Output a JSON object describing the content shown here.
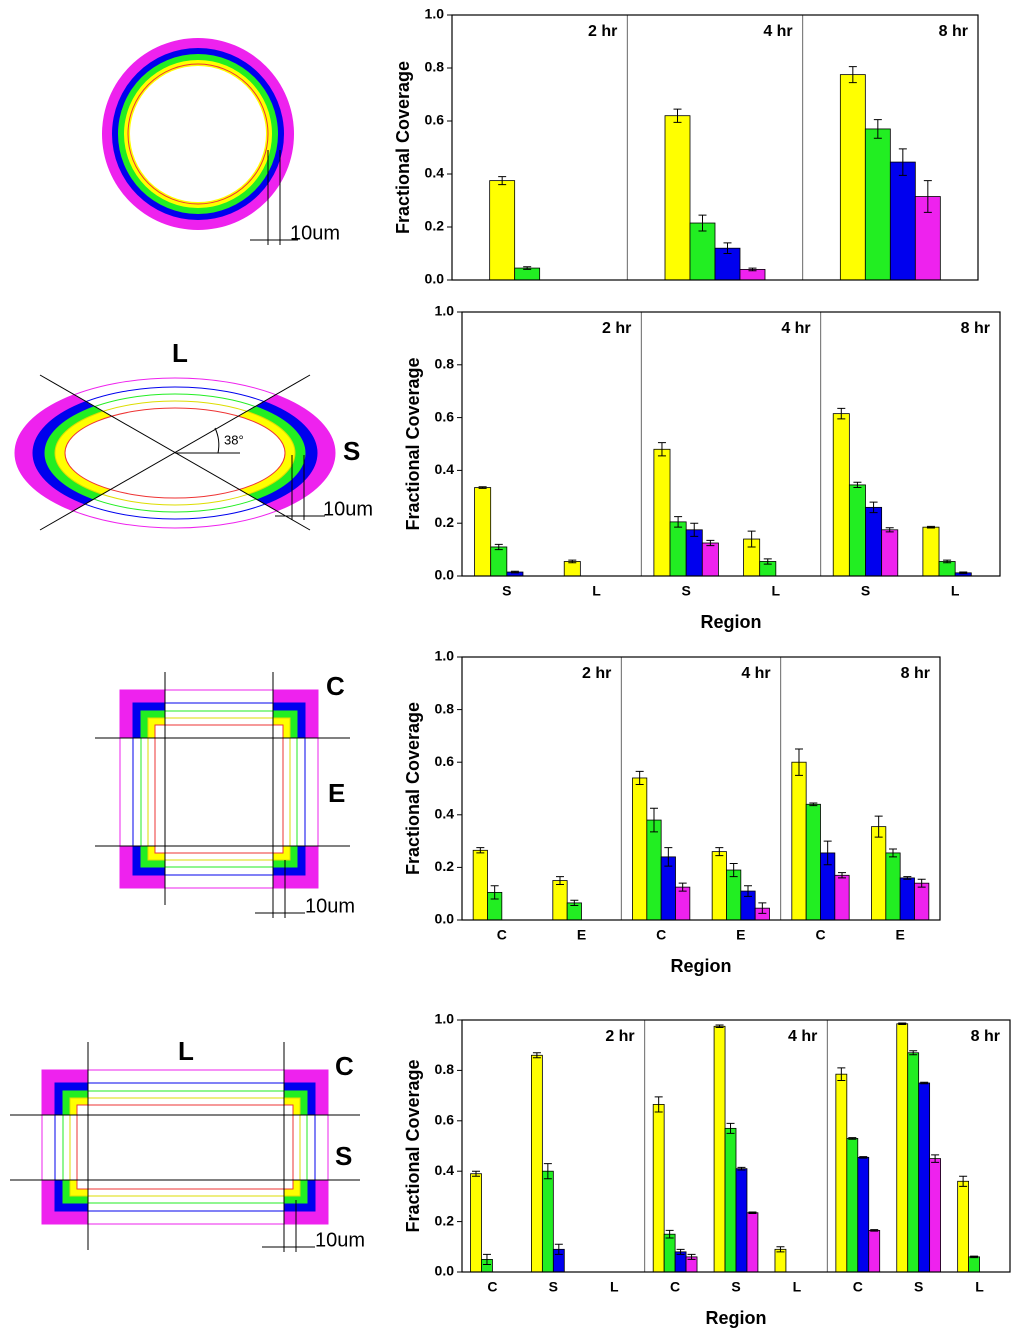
{
  "diagrams": [
    {
      "texts": [
        "10um"
      ]
    },
    {
      "texts": [
        "L",
        "S",
        "38°",
        "10um"
      ]
    },
    {
      "texts": [
        "C",
        "E",
        "10um"
      ]
    },
    {
      "texts": [
        "L",
        "C",
        "S",
        "10um"
      ]
    }
  ],
  "chart_data": [
    {
      "type": "bar",
      "ylabel": "Fractional Coverage",
      "ylim": [
        0,
        1
      ],
      "yticks": [
        {
          "value": 0,
          "label": "0.0"
        },
        {
          "value": 0.2,
          "label": "0.2"
        },
        {
          "value": 0.4,
          "label": "0.4"
        },
        {
          "value": 0.6,
          "label": "0.6"
        },
        {
          "value": 0.8,
          "label": "0.8"
        },
        {
          "value": 1,
          "label": "1.0"
        }
      ],
      "colors": [
        "#ffff00",
        "#22ee22",
        "#0000ee",
        "#ee22ee"
      ],
      "panels": [
        {
          "label": "2 hr",
          "categories": [
            null
          ],
          "series": [
            {
              "values": [
                0.375
              ],
              "errors": [
                0.015
              ]
            },
            {
              "values": [
                0.045
              ],
              "errors": [
                0.005
              ]
            },
            {
              "values": [
                null
              ],
              "errors": [
                null
              ]
            },
            {
              "values": [
                null
              ],
              "errors": [
                null
              ]
            }
          ]
        },
        {
          "label": "4 hr",
          "categories": [
            null
          ],
          "series": [
            {
              "values": [
                0.62
              ],
              "errors": [
                0.025
              ]
            },
            {
              "values": [
                0.215
              ],
              "errors": [
                0.03
              ]
            },
            {
              "values": [
                0.12
              ],
              "errors": [
                0.02
              ]
            },
            {
              "values": [
                0.04
              ],
              "errors": [
                0.005
              ]
            }
          ]
        },
        {
          "label": "8 hr",
          "categories": [
            null
          ],
          "series": [
            {
              "values": [
                0.775
              ],
              "errors": [
                0.03
              ]
            },
            {
              "values": [
                0.57
              ],
              "errors": [
                0.035
              ]
            },
            {
              "values": [
                0.445
              ],
              "errors": [
                0.05
              ]
            },
            {
              "values": [
                0.315
              ],
              "errors": [
                0.06
              ]
            }
          ]
        }
      ]
    },
    {
      "type": "bar",
      "ylabel": "Fractional Coverage",
      "xlabel": "Region",
      "ylim": [
        0,
        1
      ],
      "yticks": [
        {
          "value": 0,
          "label": "0.0"
        },
        {
          "value": 0.2,
          "label": "0.2"
        },
        {
          "value": 0.4,
          "label": "0.4"
        },
        {
          "value": 0.6,
          "label": "0.6"
        },
        {
          "value": 0.8,
          "label": "0.8"
        },
        {
          "value": 1,
          "label": "1.0"
        }
      ],
      "colors": [
        "#ffff00",
        "#22ee22",
        "#0000ee",
        "#ee22ee"
      ],
      "panels": [
        {
          "label": "2 hr",
          "categories": [
            "S",
            "L"
          ],
          "series": [
            {
              "values": [
                0.335,
                0.055
              ],
              "errors": [
                0.003,
                0.005
              ]
            },
            {
              "values": [
                0.11,
                null
              ],
              "errors": [
                0.01,
                null
              ]
            },
            {
              "values": [
                0.015,
                null
              ],
              "errors": [
                0.003,
                null
              ]
            },
            {
              "values": [
                null,
                null
              ],
              "errors": [
                null,
                null
              ]
            }
          ]
        },
        {
          "label": "4 hr",
          "categories": [
            "S",
            "L"
          ],
          "series": [
            {
              "values": [
                0.48,
                0.14
              ],
              "errors": [
                0.025,
                0.03
              ]
            },
            {
              "values": [
                0.205,
                0.055
              ],
              "errors": [
                0.02,
                0.01
              ]
            },
            {
              "values": [
                0.175,
                null
              ],
              "errors": [
                0.025,
                null
              ]
            },
            {
              "values": [
                0.125,
                null
              ],
              "errors": [
                0.01,
                null
              ]
            }
          ]
        },
        {
          "label": "8 hr",
          "categories": [
            "S",
            "L"
          ],
          "series": [
            {
              "values": [
                0.615,
                0.185
              ],
              "errors": [
                0.02,
                0.003
              ]
            },
            {
              "values": [
                0.345,
                0.055
              ],
              "errors": [
                0.01,
                0.005
              ]
            },
            {
              "values": [
                0.26,
                0.012
              ],
              "errors": [
                0.02,
                0.003
              ]
            },
            {
              "values": [
                0.175,
                null
              ],
              "errors": [
                0.008,
                null
              ]
            }
          ]
        }
      ]
    },
    {
      "type": "bar",
      "ylabel": "Fractional Coverage",
      "xlabel": "Region",
      "ylim": [
        0,
        1
      ],
      "yticks": [
        {
          "value": 0,
          "label": "0.0"
        },
        {
          "value": 0.2,
          "label": "0.2"
        },
        {
          "value": 0.4,
          "label": "0.4"
        },
        {
          "value": 0.6,
          "label": "0.6"
        },
        {
          "value": 0.8,
          "label": "0.8"
        },
        {
          "value": 1,
          "label": "1.0"
        }
      ],
      "colors": [
        "#ffff00",
        "#22ee22",
        "#0000ee",
        "#ee22ee"
      ],
      "panels": [
        {
          "label": "2 hr",
          "categories": [
            "C",
            "E"
          ],
          "series": [
            {
              "values": [
                0.265,
                0.15
              ],
              "errors": [
                0.01,
                0.015
              ]
            },
            {
              "values": [
                0.105,
                0.065
              ],
              "errors": [
                0.025,
                0.01
              ]
            },
            {
              "values": [
                null,
                null
              ],
              "errors": [
                null,
                null
              ]
            },
            {
              "values": [
                null,
                null
              ],
              "errors": [
                null,
                null
              ]
            }
          ]
        },
        {
          "label": "4 hr",
          "categories": [
            "C",
            "E"
          ],
          "series": [
            {
              "values": [
                0.54,
                0.26
              ],
              "errors": [
                0.025,
                0.015
              ]
            },
            {
              "values": [
                0.38,
                0.19
              ],
              "errors": [
                0.045,
                0.025
              ]
            },
            {
              "values": [
                0.24,
                0.11
              ],
              "errors": [
                0.035,
                0.02
              ]
            },
            {
              "values": [
                0.125,
                0.045
              ],
              "errors": [
                0.015,
                0.02
              ]
            }
          ]
        },
        {
          "label": "8 hr",
          "categories": [
            "C",
            "E"
          ],
          "series": [
            {
              "values": [
                0.6,
                0.355
              ],
              "errors": [
                0.05,
                0.04
              ]
            },
            {
              "values": [
                0.44,
                0.255
              ],
              "errors": [
                0.005,
                0.015
              ]
            },
            {
              "values": [
                0.255,
                0.16
              ],
              "errors": [
                0.045,
                0.005
              ]
            },
            {
              "values": [
                0.17,
                0.14
              ],
              "errors": [
                0.01,
                0.015
              ]
            }
          ]
        }
      ]
    },
    {
      "type": "bar",
      "ylabel": "Fractional Coverage",
      "xlabel": "Region",
      "ylim": [
        0,
        1
      ],
      "yticks": [
        {
          "value": 0,
          "label": "0.0"
        },
        {
          "value": 0.2,
          "label": "0.2"
        },
        {
          "value": 0.4,
          "label": "0.4"
        },
        {
          "value": 0.6,
          "label": "0.6"
        },
        {
          "value": 0.8,
          "label": "0.8"
        },
        {
          "value": 1,
          "label": "1.0"
        }
      ],
      "colors": [
        "#ffff00",
        "#22ee22",
        "#0000ee",
        "#ee22ee"
      ],
      "panels": [
        {
          "label": "2 hr",
          "categories": [
            "C",
            "S",
            "L"
          ],
          "series": [
            {
              "values": [
                0.39,
                0.86,
                null
              ],
              "errors": [
                0.01,
                0.01,
                null
              ]
            },
            {
              "values": [
                0.05,
                0.4,
                null
              ],
              "errors": [
                0.02,
                0.03,
                null
              ]
            },
            {
              "values": [
                null,
                0.09,
                null
              ],
              "errors": [
                null,
                0.02,
                null
              ]
            },
            {
              "values": [
                null,
                null,
                null
              ],
              "errors": [
                null,
                null,
                null
              ]
            }
          ]
        },
        {
          "label": "4 hr",
          "categories": [
            "C",
            "S",
            "L"
          ],
          "series": [
            {
              "values": [
                0.665,
                0.975,
                0.09
              ],
              "errors": [
                0.03,
                0.005,
                0.01
              ]
            },
            {
              "values": [
                0.15,
                0.57,
                null
              ],
              "errors": [
                0.015,
                0.02,
                null
              ]
            },
            {
              "values": [
                0.08,
                0.41,
                null
              ],
              "errors": [
                0.01,
                0.005,
                null
              ]
            },
            {
              "values": [
                0.06,
                0.235,
                null
              ],
              "errors": [
                0.01,
                0.003,
                null
              ]
            }
          ]
        },
        {
          "label": "8 hr",
          "categories": [
            "C",
            "S",
            "L"
          ],
          "series": [
            {
              "values": [
                0.785,
                0.985,
                0.36
              ],
              "errors": [
                0.025,
                0.003,
                0.02
              ]
            },
            {
              "values": [
                0.53,
                0.87,
                0.06
              ],
              "errors": [
                0.003,
                0.008,
                0.003
              ]
            },
            {
              "values": [
                0.455,
                0.75,
                null
              ],
              "errors": [
                0.003,
                0.003,
                null
              ]
            },
            {
              "values": [
                0.165,
                0.45,
                null
              ],
              "errors": [
                0.003,
                0.015,
                null
              ]
            }
          ]
        }
      ]
    }
  ]
}
